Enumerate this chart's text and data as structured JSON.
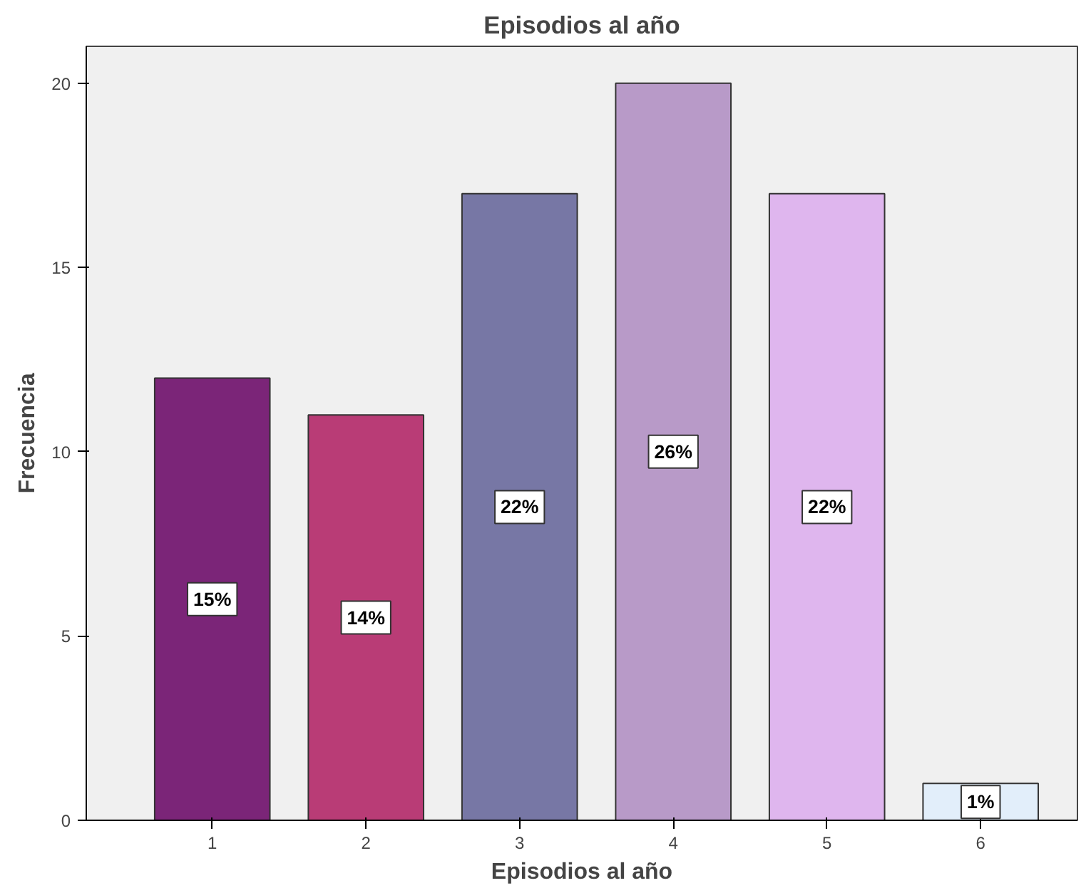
{
  "chart_data": {
    "type": "bar",
    "title": "Episodios al año",
    "xlabel": "Episodios al año",
    "ylabel": "Frecuencia",
    "categories": [
      "1",
      "2",
      "3",
      "4",
      "5",
      "6"
    ],
    "values": [
      12,
      11,
      17,
      20,
      17,
      1
    ],
    "colors": [
      "#7b2578",
      "#b93c76",
      "#7777a5",
      "#b89ac8",
      "#dfb6ee",
      "#e2eefa"
    ],
    "annotations": [
      {
        "text": "15%",
        "x": "1",
        "y": 6
      },
      {
        "text": "14%",
        "x": "2",
        "y": 5.5
      },
      {
        "text": "22%",
        "x": "3",
        "y": 8.5
      },
      {
        "text": "26%",
        "x": "4",
        "y": 10
      },
      {
        "text": "22%",
        "x": "5",
        "y": 8.5
      },
      {
        "text": "1%",
        "x": "6",
        "y": 0.5
      }
    ],
    "ylim": [
      0,
      21
    ],
    "yticks": [
      0,
      5,
      10,
      15,
      20
    ],
    "grid": false
  }
}
